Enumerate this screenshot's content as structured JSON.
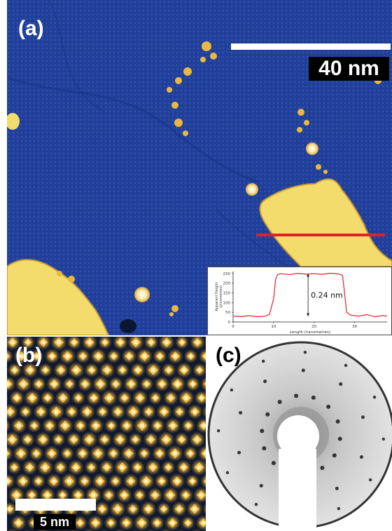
{
  "panels": {
    "a": {
      "label": "(a)",
      "scale_bar_label": "40 nm",
      "colors": {
        "substrate": "#1f3f9a",
        "island": "#f4dc6c",
        "marker_line": "#e0202a",
        "label": "#ffffff"
      }
    },
    "b": {
      "label": "(b)",
      "scale_bar_label": "5 nm",
      "colors": {
        "background": "#0f1a30",
        "spot": "#f2b63a",
        "label": "#ffffff"
      }
    },
    "c": {
      "label": "(c)",
      "colors": {
        "screen": "#cfcfcf",
        "spot": "#1a1a1a",
        "label": "#000000"
      }
    }
  },
  "inset_profile": {
    "annotation": "0.24 nm",
    "ylabel": "Apparent Height (picometres)",
    "xlabel": "Length (nanometres)",
    "y_ticks": [
      "0",
      "50",
      "100",
      "150",
      "200",
      "250"
    ],
    "x_ticks": [
      "0",
      "10",
      "20",
      "30"
    ],
    "line_color": "#e0202a"
  },
  "chart_data": {
    "type": "line",
    "title": "",
    "xlabel": "Length (nanometres)",
    "ylabel": "Apparent Height (picometres)",
    "xlim": [
      0,
      38
    ],
    "ylim": [
      0,
      260
    ],
    "grid": false,
    "series": [
      {
        "x": [
          0,
          2,
          4,
          6,
          8,
          9,
          10,
          10.5,
          11,
          12,
          14,
          16,
          18,
          20,
          22,
          24,
          26,
          27,
          27.5,
          28,
          29,
          31,
          33,
          35,
          37,
          38
        ],
        "y": [
          30,
          28,
          32,
          27,
          30,
          40,
          120,
          220,
          245,
          248,
          244,
          250,
          246,
          249,
          245,
          251,
          247,
          240,
          150,
          50,
          35,
          30,
          38,
          27,
          33,
          30
        ]
      }
    ]
  }
}
